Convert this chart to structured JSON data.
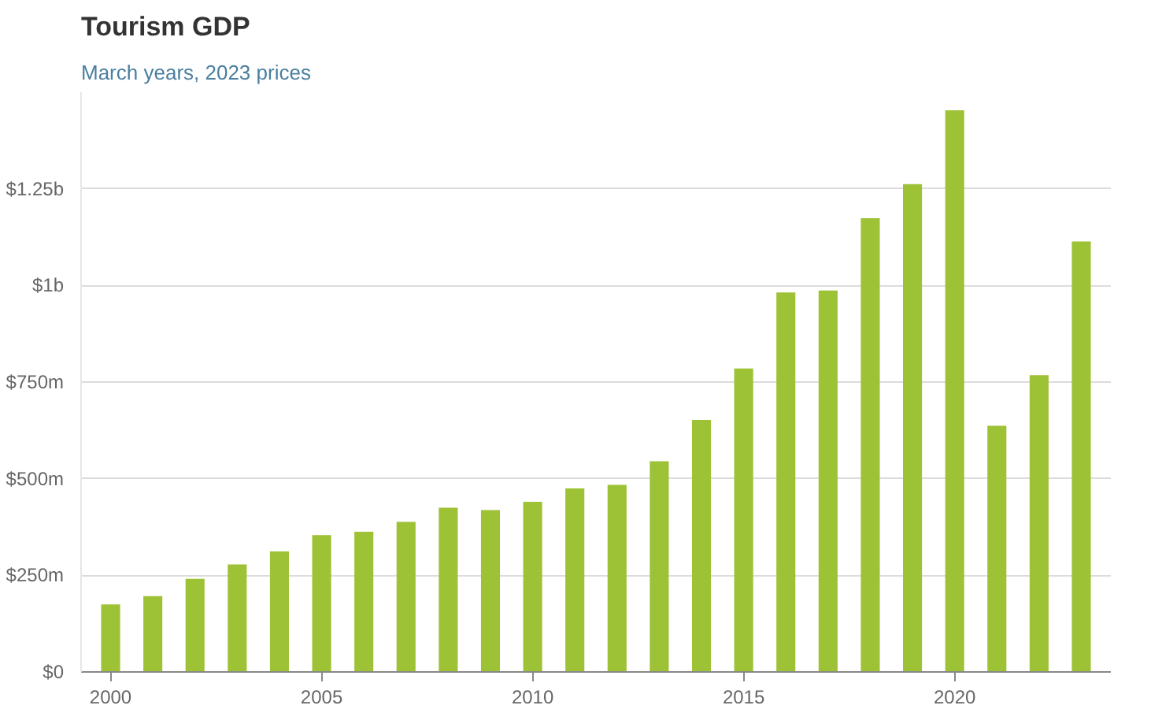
{
  "chart_data": {
    "type": "bar",
    "title": "Tourism GDP",
    "subtitle": "March years, 2023 prices",
    "x": [
      2000,
      2001,
      2002,
      2003,
      2004,
      2005,
      2006,
      2007,
      2008,
      2009,
      2010,
      2011,
      2012,
      2013,
      2014,
      2015,
      2016,
      2017,
      2018,
      2019,
      2020,
      2021,
      2022,
      2023
    ],
    "values": [
      175000000,
      196000000,
      241000000,
      278000000,
      312000000,
      354000000,
      363000000,
      388000000,
      425000000,
      419000000,
      440000000,
      475000000,
      484000000,
      545000000,
      652000000,
      785000000,
      982000000,
      987000000,
      1174000000,
      1262000000,
      1453000000,
      637000000,
      768000000,
      1114000000
    ],
    "color": "#9ec236",
    "xlim": [
      1999.3,
      2023.7
    ],
    "xticks": [
      2000,
      2005,
      2010,
      2015,
      2020
    ],
    "ylim": [
      0,
      1500000000
    ],
    "yticks": [
      {
        "value": 0,
        "label": "$0"
      },
      {
        "value": 250000000,
        "label": "$250m"
      },
      {
        "value": 500000000,
        "label": "$500m"
      },
      {
        "value": 750000000,
        "label": "$750m"
      },
      {
        "value": 1000000000,
        "label": "$1b"
      },
      {
        "value": 1250000000,
        "label": "$1.25b"
      }
    ],
    "grid": "y"
  }
}
